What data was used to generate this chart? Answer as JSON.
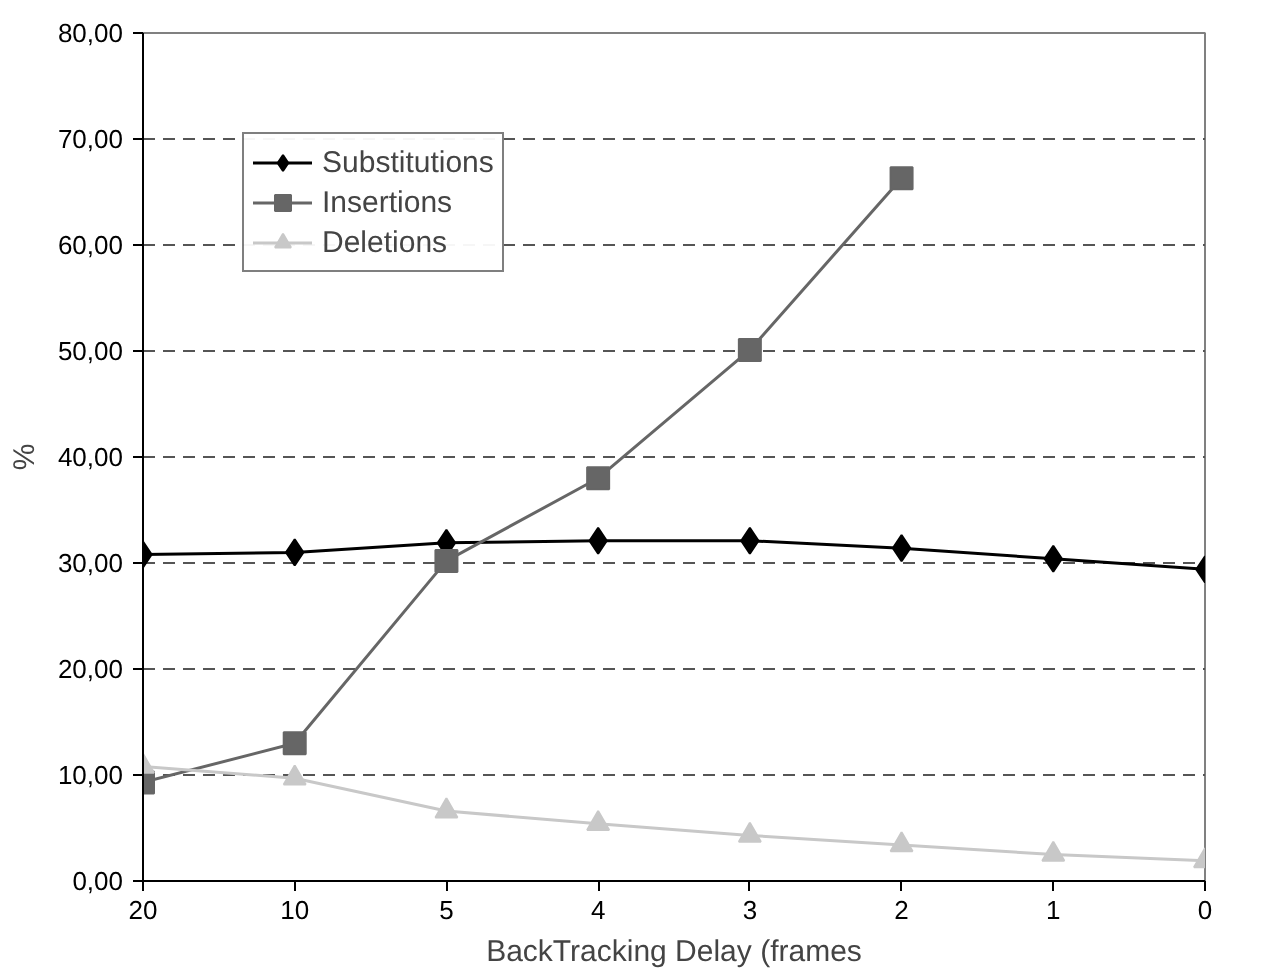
{
  "chart_data": {
    "type": "line",
    "xlabel": "BackTracking Delay (frames",
    "ylabel": "%",
    "categories": [
      "20",
      "10",
      "5",
      "4",
      "3",
      "2",
      "1",
      "0"
    ],
    "series": [
      {
        "name": "Substitutions",
        "color": "#000000",
        "marker": "diamond",
        "values": [
          30.8,
          31.0,
          31.9,
          32.1,
          32.1,
          31.4,
          30.4,
          29.4
        ]
      },
      {
        "name": "Insertions",
        "color": "#666666",
        "marker": "square",
        "values": [
          9.3,
          13.0,
          30.2,
          38.0,
          50.1,
          66.3,
          null,
          null
        ]
      },
      {
        "name": "Deletions",
        "color": "#c8c8c8",
        "marker": "triangle",
        "values": [
          10.8,
          9.7,
          6.6,
          5.4,
          4.3,
          3.4,
          2.5,
          1.9
        ]
      }
    ],
    "ylim": [
      0,
      80
    ],
    "yticks": [
      {
        "value": 0,
        "label": "0,00"
      },
      {
        "value": 10,
        "label": "10,00"
      },
      {
        "value": 20,
        "label": "20,00"
      },
      {
        "value": 30,
        "label": "30,00"
      },
      {
        "value": 40,
        "label": "40,00"
      },
      {
        "value": 50,
        "label": "50,00"
      },
      {
        "value": 60,
        "label": "60,00"
      },
      {
        "value": 70,
        "label": "70,00"
      },
      {
        "value": 80,
        "label": "80,00"
      }
    ],
    "grid": "y",
    "legend": "top left"
  }
}
